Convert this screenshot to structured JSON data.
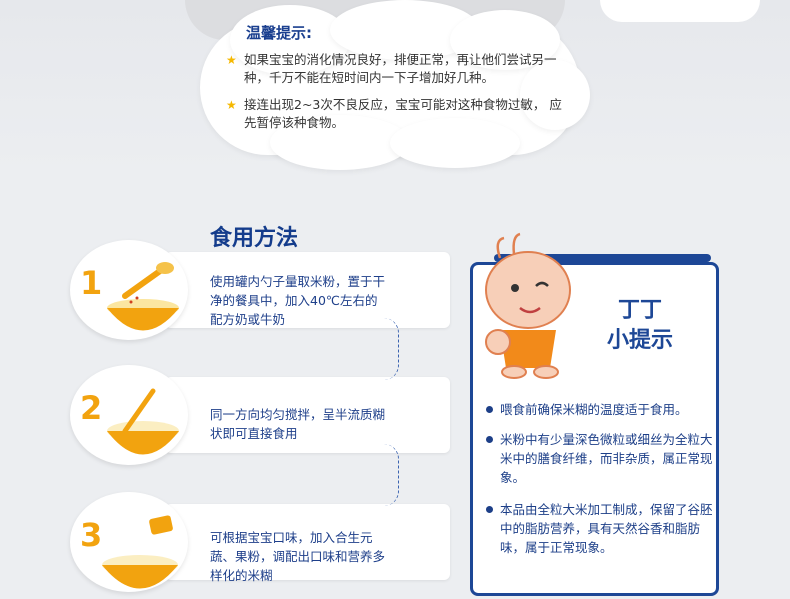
{
  "tips": {
    "title": "温馨提示:",
    "items": [
      "如果宝宝的消化情况良好，排便正常，再让他们尝试另一种，千万不能在短时间内一下子增加好几种。",
      "接连出现2~3次不良反应，宝宝可能对这种食物过敏， 应先暂停该种食物。"
    ]
  },
  "method": {
    "title": "食用方法",
    "steps": [
      {
        "num": "1",
        "text": "使用罐内勺子量取米粉，置于干净的餐具中，加入40℃左右的配方奶或牛奶"
      },
      {
        "num": "2",
        "text": "同一方向均匀搅拌，呈半流质糊状即可直接食用"
      },
      {
        "num": "3",
        "text": "可根据宝宝口味，加入合生元蔬、果粉，调配出口味和营养多样化的米糊"
      }
    ]
  },
  "panel": {
    "title_line1": "丁丁",
    "title_line2": "小提示",
    "items": [
      "喂食前确保米糊的温度适于食用。",
      "米粉中有少量深色微粒或细丝为全粒大米中的膳食纤维，而非杂质，属正常现象。",
      "本品由全粒大米加工制成，保留了谷胚中的脂肪营养，具有天然谷香和脂肪味，属于正常现象。"
    ]
  },
  "colors": {
    "navy": "#1d4796",
    "orange": "#f2a30f",
    "star": "#f5b800"
  }
}
